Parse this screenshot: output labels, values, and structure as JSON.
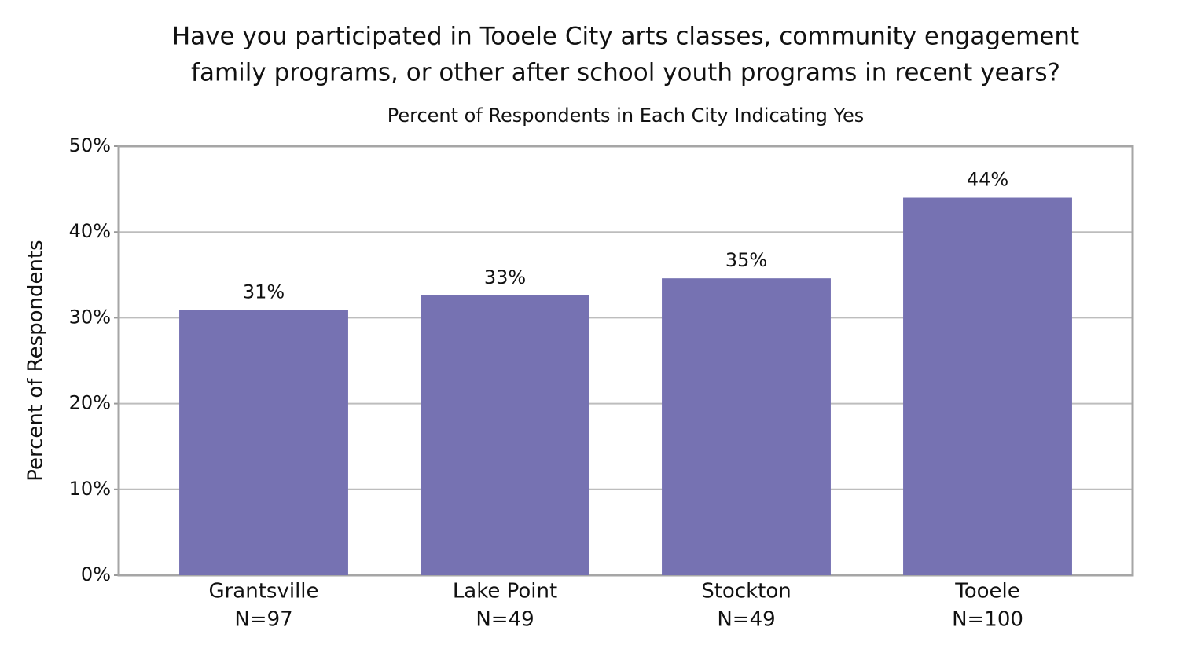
{
  "chart_data": {
    "type": "bar",
    "title": [
      "Have you participated in Tooele City arts classes, community engagement",
      "family programs, or other after school youth programs in recent years?"
    ],
    "subtitle": "Percent of Respondents in Each City Indicating Yes",
    "y_label": "Percent of Respondents",
    "categories": [
      [
        "Grantsville",
        "N=97"
      ],
      [
        "Lake Point",
        "N=49"
      ],
      [
        "Stockton",
        "N=49"
      ],
      [
        "Tooele",
        "N=100"
      ]
    ],
    "values": [
      30.9,
      32.6,
      34.6,
      44.0
    ],
    "value_labels": [
      "31%",
      "33%",
      "35%",
      "44%"
    ],
    "color": "#7672b2",
    "ylim": [
      0,
      50
    ],
    "yticks": [
      {
        "value": 0,
        "label": "0%"
      },
      {
        "value": 10,
        "label": "10%"
      },
      {
        "value": 20,
        "label": "20%"
      },
      {
        "value": 30,
        "label": "30%"
      },
      {
        "value": 40,
        "label": "40%"
      },
      {
        "value": 50,
        "label": "50%"
      }
    ],
    "grid": true
  }
}
